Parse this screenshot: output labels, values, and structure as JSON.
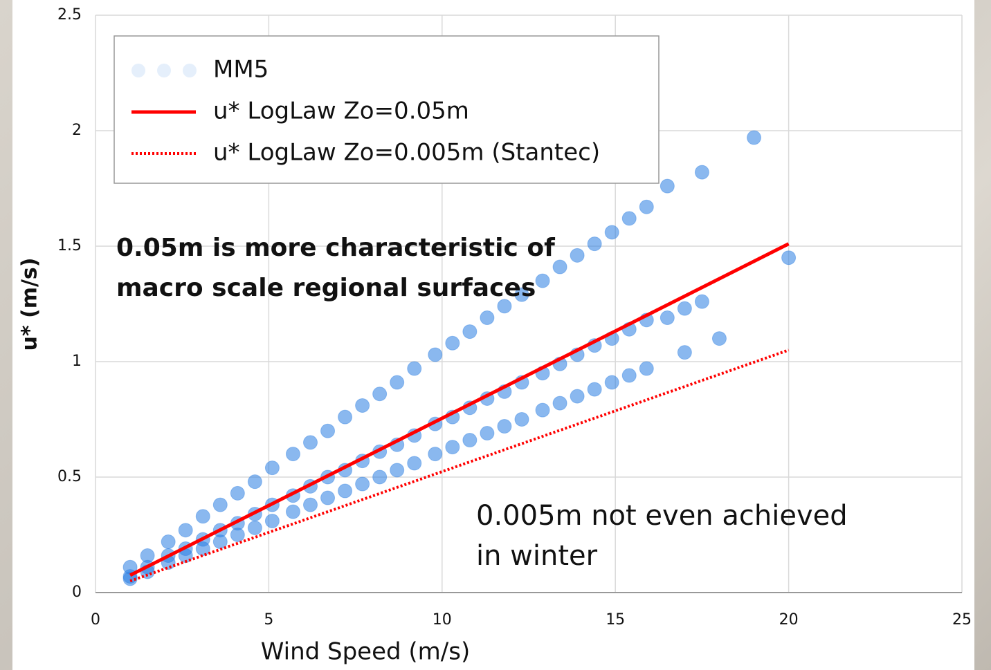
{
  "chart_data": {
    "type": "scatter",
    "xlabel": "Wind Speed (m/s)",
    "ylabel": "u* (m/s)",
    "xlim": [
      0,
      25
    ],
    "xticks": [
      0,
      5,
      10,
      15,
      20,
      25
    ],
    "ylim": [
      0,
      2.5
    ],
    "yticks": [
      0,
      0.5,
      1,
      1.5,
      2,
      2.5
    ],
    "grid": true,
    "legend": "upper-left",
    "series": [
      {
        "name": "MM5",
        "type": "scatter",
        "color": "#2a7de1",
        "x": [
          1,
          1.5,
          2.1,
          2.6,
          3.1,
          3.6,
          4.1,
          4.6,
          5.1,
          5.7,
          6.2,
          6.7,
          7.2,
          7.7,
          8.2,
          8.7,
          9.2,
          9.8,
          10.3,
          10.8,
          11.3,
          11.8,
          12.3,
          12.9,
          13.4,
          13.9,
          14.4,
          14.9,
          15.4,
          15.9,
          1,
          1.5,
          2.1,
          2.6,
          3.1,
          3.6,
          4.1,
          4.6,
          5.1,
          5.7,
          6.2,
          6.7,
          7.2,
          7.7,
          8.2,
          8.7,
          9.2,
          9.8,
          10.3,
          10.8,
          11.3,
          11.8,
          12.3,
          12.9,
          13.4,
          13.9,
          14.4,
          14.9,
          15.4,
          15.9,
          1,
          1.5,
          2.1,
          2.6,
          3.1,
          3.6,
          4.1,
          4.6,
          5.1,
          5.7,
          6.2,
          6.7,
          7.2,
          7.7,
          8.2,
          8.7,
          9.2,
          9.8,
          10.3,
          10.8,
          11.3,
          11.8,
          12.3,
          12.9,
          13.4,
          13.9,
          14.4,
          14.9,
          15.4,
          15.9,
          16.5,
          17.5,
          19,
          20,
          16.5,
          17,
          17.5,
          17,
          18
        ],
        "values": [
          0.11,
          0.16,
          0.22,
          0.27,
          0.33,
          0.38,
          0.43,
          0.48,
          0.54,
          0.6,
          0.65,
          0.7,
          0.76,
          0.81,
          0.86,
          0.91,
          0.97,
          1.03,
          1.08,
          1.13,
          1.19,
          1.24,
          1.29,
          1.35,
          1.41,
          1.46,
          1.51,
          1.56,
          1.62,
          1.67,
          0.07,
          0.11,
          0.16,
          0.19,
          0.23,
          0.27,
          0.3,
          0.34,
          0.38,
          0.42,
          0.46,
          0.5,
          0.53,
          0.57,
          0.61,
          0.64,
          0.68,
          0.73,
          0.76,
          0.8,
          0.84,
          0.87,
          0.91,
          0.95,
          0.99,
          1.03,
          1.07,
          1.1,
          1.14,
          1.18,
          0.06,
          0.09,
          0.13,
          0.16,
          0.19,
          0.22,
          0.25,
          0.28,
          0.31,
          0.35,
          0.38,
          0.41,
          0.44,
          0.47,
          0.5,
          0.53,
          0.56,
          0.6,
          0.63,
          0.66,
          0.69,
          0.72,
          0.75,
          0.79,
          0.82,
          0.85,
          0.88,
          0.91,
          0.94,
          0.97,
          1.76,
          1.82,
          1.97,
          1.45,
          1.19,
          1.23,
          1.26,
          1.04,
          1.1
        ]
      },
      {
        "name": "u* LogLaw Zo=0.05m",
        "type": "line",
        "color": "#ff0000",
        "x": [
          1,
          20
        ],
        "values": [
          0.075,
          1.51
        ]
      },
      {
        "name": "u* LogLaw Zo=0.005m (Stantec)",
        "type": "line",
        "dash": "dotted",
        "color": "#ff0000",
        "x": [
          1,
          20
        ],
        "values": [
          0.05,
          1.05
        ]
      }
    ],
    "annotations": [
      {
        "lines": [
          "0.05m is more characteristic of",
          "macro scale regional surfaces"
        ],
        "bold": true
      },
      {
        "lines": [
          "0.005m not even achieved",
          "in winter"
        ],
        "bold": false
      }
    ]
  }
}
